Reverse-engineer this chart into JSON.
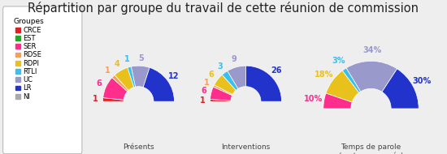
{
  "title": "Répartition par groupe du travail de cette réunion de commission",
  "groups": [
    "CRCE",
    "EST",
    "SER",
    "RDSE",
    "RDPI",
    "RTLI",
    "UC",
    "LR",
    "NI"
  ],
  "colors": [
    "#e31e24",
    "#22aa22",
    "#ff2d8c",
    "#f5a05a",
    "#e8c11c",
    "#3bbfef",
    "#9999cc",
    "#2233cc",
    "#aaaaaa"
  ],
  "charts": [
    {
      "label": "Présents",
      "values": [
        1,
        0,
        6,
        1,
        4,
        1,
        5,
        12,
        0
      ],
      "is_pct": false
    },
    {
      "label": "Interventions",
      "values": [
        1,
        0,
        6,
        1,
        6,
        3,
        9,
        26,
        0
      ],
      "is_pct": false
    },
    {
      "label": "Temps de parole\n(mots prononcés)",
      "values": [
        0,
        0,
        10,
        0,
        18,
        3,
        34,
        30,
        0
      ],
      "is_pct": true
    }
  ],
  "legend_title": "Groupes",
  "background_color": "#eeeeee",
  "title_fontsize": 10.5,
  "label_fontsize": 7.0
}
